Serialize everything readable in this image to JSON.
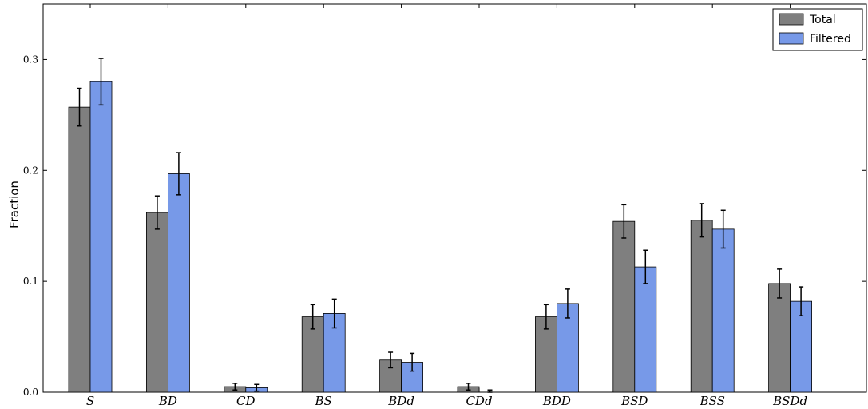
{
  "chart_data": {
    "type": "bar",
    "title": "",
    "xlabel": "",
    "ylabel": "Fraction",
    "categories": [
      "S",
      "BD",
      "CD",
      "BS",
      "BDd",
      "CDd",
      "BDD",
      "BSD",
      "BSS",
      "BSDd"
    ],
    "series": [
      {
        "name": "Total",
        "color": "#7f7f7f",
        "values": [
          0.257,
          0.162,
          0.005,
          0.068,
          0.029,
          0.005,
          0.068,
          0.154,
          0.155,
          0.098
        ],
        "errors": [
          0.017,
          0.015,
          0.003,
          0.011,
          0.007,
          0.003,
          0.011,
          0.015,
          0.015,
          0.013
        ]
      },
      {
        "name": "Filtered",
        "color": "#7799e8",
        "values": [
          0.28,
          0.197,
          0.004,
          0.071,
          0.027,
          0.0,
          0.08,
          0.113,
          0.147,
          0.082
        ],
        "errors": [
          0.021,
          0.019,
          0.003,
          0.013,
          0.008,
          0.002,
          0.013,
          0.015,
          0.017,
          0.013
        ]
      }
    ],
    "ylim": [
      0,
      0.35
    ],
    "yticks": [
      "0.0",
      "0.1",
      "0.2",
      "0.3"
    ],
    "legend_position": "top-right",
    "grid": false
  }
}
